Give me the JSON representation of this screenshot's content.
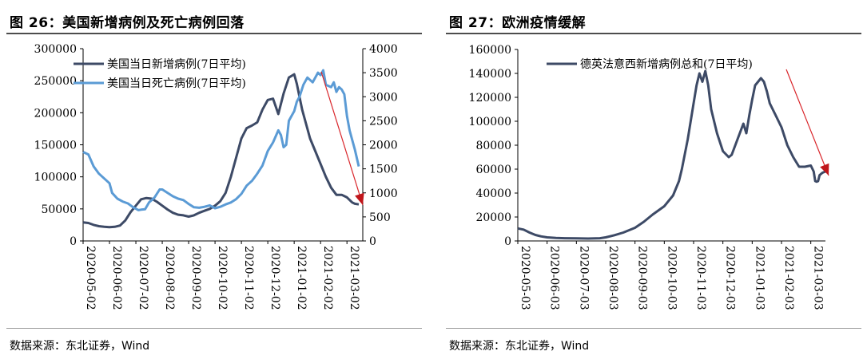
{
  "figures": [
    {
      "id": "fig26",
      "title": "图 26：美国新增病例及死亡病例回落",
      "source": "数据来源：东北证券，Wind",
      "chart_data": {
        "type": "line",
        "title": "美国新增病例及死亡病例回落",
        "xlabel": "",
        "ylabel": "",
        "x_tick_labels": [
          "2020-05-02",
          "2020-06-02",
          "2020-07-02",
          "2020-08-02",
          "2020-09-02",
          "2020-10-02",
          "2020-11-02",
          "2020-12-02",
          "2021-01-02",
          "2021-02-02",
          "2021-03-02"
        ],
        "x_range": [
          0,
          10.6
        ],
        "y_left": {
          "min": 0,
          "max": 300000,
          "ticks": [
            "0",
            "50000",
            "100000",
            "150000",
            "200000",
            "250000",
            "300000"
          ]
        },
        "y_right": {
          "min": 0,
          "max": 4000,
          "ticks": [
            "0",
            "500",
            "1000",
            "1500",
            "2000",
            "2500",
            "3000",
            "3500",
            "4000"
          ]
        },
        "legend": [
          "美国当日新增病例(7日平均)",
          "美国当日死亡病例(7日平均)"
        ],
        "legend_position": "top-left",
        "annotation": "red downward arrow from Jan 2021 peak to Mar 2021",
        "series": [
          {
            "name": "美国当日新增病例(7日平均)",
            "axis": "left",
            "color": "#3d4a66",
            "x": [
              0,
              0.2,
              0.4,
              0.6,
              0.8,
              1.0,
              1.2,
              1.4,
              1.6,
              1.8,
              2.0,
              2.2,
              2.4,
              2.6,
              2.8,
              3.0,
              3.2,
              3.4,
              3.6,
              3.8,
              4.0,
              4.2,
              4.4,
              4.6,
              4.8,
              5.0,
              5.2,
              5.4,
              5.6,
              5.8,
              6.0,
              6.2,
              6.4,
              6.6,
              6.8,
              7.0,
              7.2,
              7.4,
              7.6,
              7.8,
              8.0,
              8.1,
              8.2,
              8.3,
              8.4,
              8.5,
              8.6,
              8.8,
              9.0,
              9.2,
              9.4,
              9.6,
              9.8,
              10.0,
              10.2,
              10.3,
              10.45
            ],
            "values": [
              29000,
              28000,
              25000,
              23000,
              22000,
              21500,
              22000,
              24000,
              32000,
              45000,
              55000,
              65000,
              67000,
              66000,
              61000,
              55000,
              49000,
              44000,
              41000,
              40000,
              38000,
              40000,
              44000,
              47000,
              50000,
              55000,
              62000,
              75000,
              100000,
              130000,
              160000,
              176000,
              180000,
              185000,
              205000,
              220000,
              222000,
              198000,
              230000,
              255000,
              260000,
              245000,
              225000,
              205000,
              190000,
              175000,
              160000,
              140000,
              120000,
              100000,
              83000,
              72000,
              72000,
              68000,
              60000,
              58000,
              57000
            ]
          },
          {
            "name": "美国当日死亡病例(7日平均)",
            "axis": "right",
            "color": "#5b9bd5",
            "x": [
              0,
              0.2,
              0.4,
              0.6,
              0.8,
              1.0,
              1.1,
              1.3,
              1.5,
              1.7,
              1.9,
              2.1,
              2.2,
              2.35,
              2.5,
              2.7,
              2.9,
              3.0,
              3.2,
              3.4,
              3.6,
              3.8,
              4.0,
              4.2,
              4.4,
              4.6,
              4.8,
              5.0,
              5.2,
              5.4,
              5.6,
              5.8,
              6.0,
              6.2,
              6.4,
              6.6,
              6.8,
              7.0,
              7.2,
              7.4,
              7.5,
              7.6,
              7.7,
              7.8,
              8.0,
              8.1,
              8.2,
              8.35,
              8.5,
              8.7,
              8.9,
              9.0,
              9.1,
              9.2,
              9.4,
              9.5,
              9.6,
              9.7,
              9.8,
              9.9,
              10.0,
              10.1,
              10.2,
              10.3,
              10.45
            ],
            "values": [
              1850,
              1800,
              1550,
              1400,
              1300,
              1200,
              1000,
              880,
              820,
              780,
              700,
              640,
              650,
              660,
              800,
              900,
              1070,
              1070,
              1000,
              930,
              880,
              850,
              770,
              700,
              690,
              710,
              740,
              680,
              710,
              760,
              800,
              870,
              980,
              1150,
              1250,
              1400,
              1570,
              1870,
              2050,
              2300,
              2200,
              1950,
              2000,
              2500,
              2700,
              2900,
              3000,
              3250,
              3400,
              3300,
              3500,
              3450,
              3550,
              3250,
              3200,
              3300,
              3100,
              3200,
              3150,
              3050,
              2600,
              2300,
              2100,
              1900,
              1550
            ]
          }
        ]
      }
    },
    {
      "id": "fig27",
      "title": "图 27：欧洲疫情缓解",
      "source": "数据来源：东北证券，Wind",
      "chart_data": {
        "type": "line",
        "title": "欧洲疫情缓解",
        "xlabel": "",
        "ylabel": "",
        "x_tick_labels": [
          "2020-05-03",
          "2020-06-03",
          "2020-07-03",
          "2020-08-03",
          "2020-09-03",
          "2020-10-03",
          "2020-11-03",
          "2020-12-03",
          "2021-01-03",
          "2021-02-03",
          "2021-03-03"
        ],
        "x_range": [
          0,
          10.5
        ],
        "y_left": {
          "min": 0,
          "max": 160000,
          "ticks": [
            "0",
            "20000",
            "40000",
            "60000",
            "80000",
            "100000",
            "120000",
            "140000",
            "160000"
          ]
        },
        "legend": [
          "德英法意西新增病例总和(7日平均)"
        ],
        "legend_position": "top-right",
        "annotation": "red downward arrow from Jan 2021 peak to Mar 2021",
        "series": [
          {
            "name": "德英法意西新增病例总和(7日平均)",
            "axis": "left",
            "color": "#3d4a66",
            "x": [
              0,
              0.2,
              0.4,
              0.6,
              0.8,
              1.0,
              1.3,
              1.6,
              2.0,
              2.4,
              2.8,
              3.0,
              3.3,
              3.6,
              4.0,
              4.3,
              4.6,
              5.0,
              5.3,
              5.5,
              5.6,
              5.8,
              6.0,
              6.1,
              6.2,
              6.3,
              6.4,
              6.5,
              6.6,
              6.8,
              7.0,
              7.2,
              7.3,
              7.5,
              7.7,
              7.8,
              7.9,
              8.0,
              8.1,
              8.3,
              8.4,
              8.5,
              8.6,
              8.8,
              9.0,
              9.2,
              9.4,
              9.6,
              9.8,
              10.0,
              10.1,
              10.15,
              10.2,
              10.25,
              10.3,
              10.4,
              10.5
            ],
            "values": [
              10500,
              9500,
              7000,
              5000,
              3800,
              3000,
              2500,
              2300,
              2200,
              2000,
              2300,
              3000,
              4800,
              7000,
              11000,
              16000,
              22000,
              29000,
              38000,
              50000,
              60000,
              85000,
              115000,
              130000,
              140000,
              133000,
              142000,
              130000,
              110000,
              90000,
              75000,
              70000,
              72000,
              85000,
              98000,
              90000,
              105000,
              118000,
              130000,
              136000,
              133000,
              125000,
              115000,
              105000,
              95000,
              80000,
              70000,
              62000,
              62000,
              63000,
              58000,
              50000,
              49500,
              50000,
              55000,
              57000,
              58000
            ]
          }
        ]
      }
    }
  ]
}
